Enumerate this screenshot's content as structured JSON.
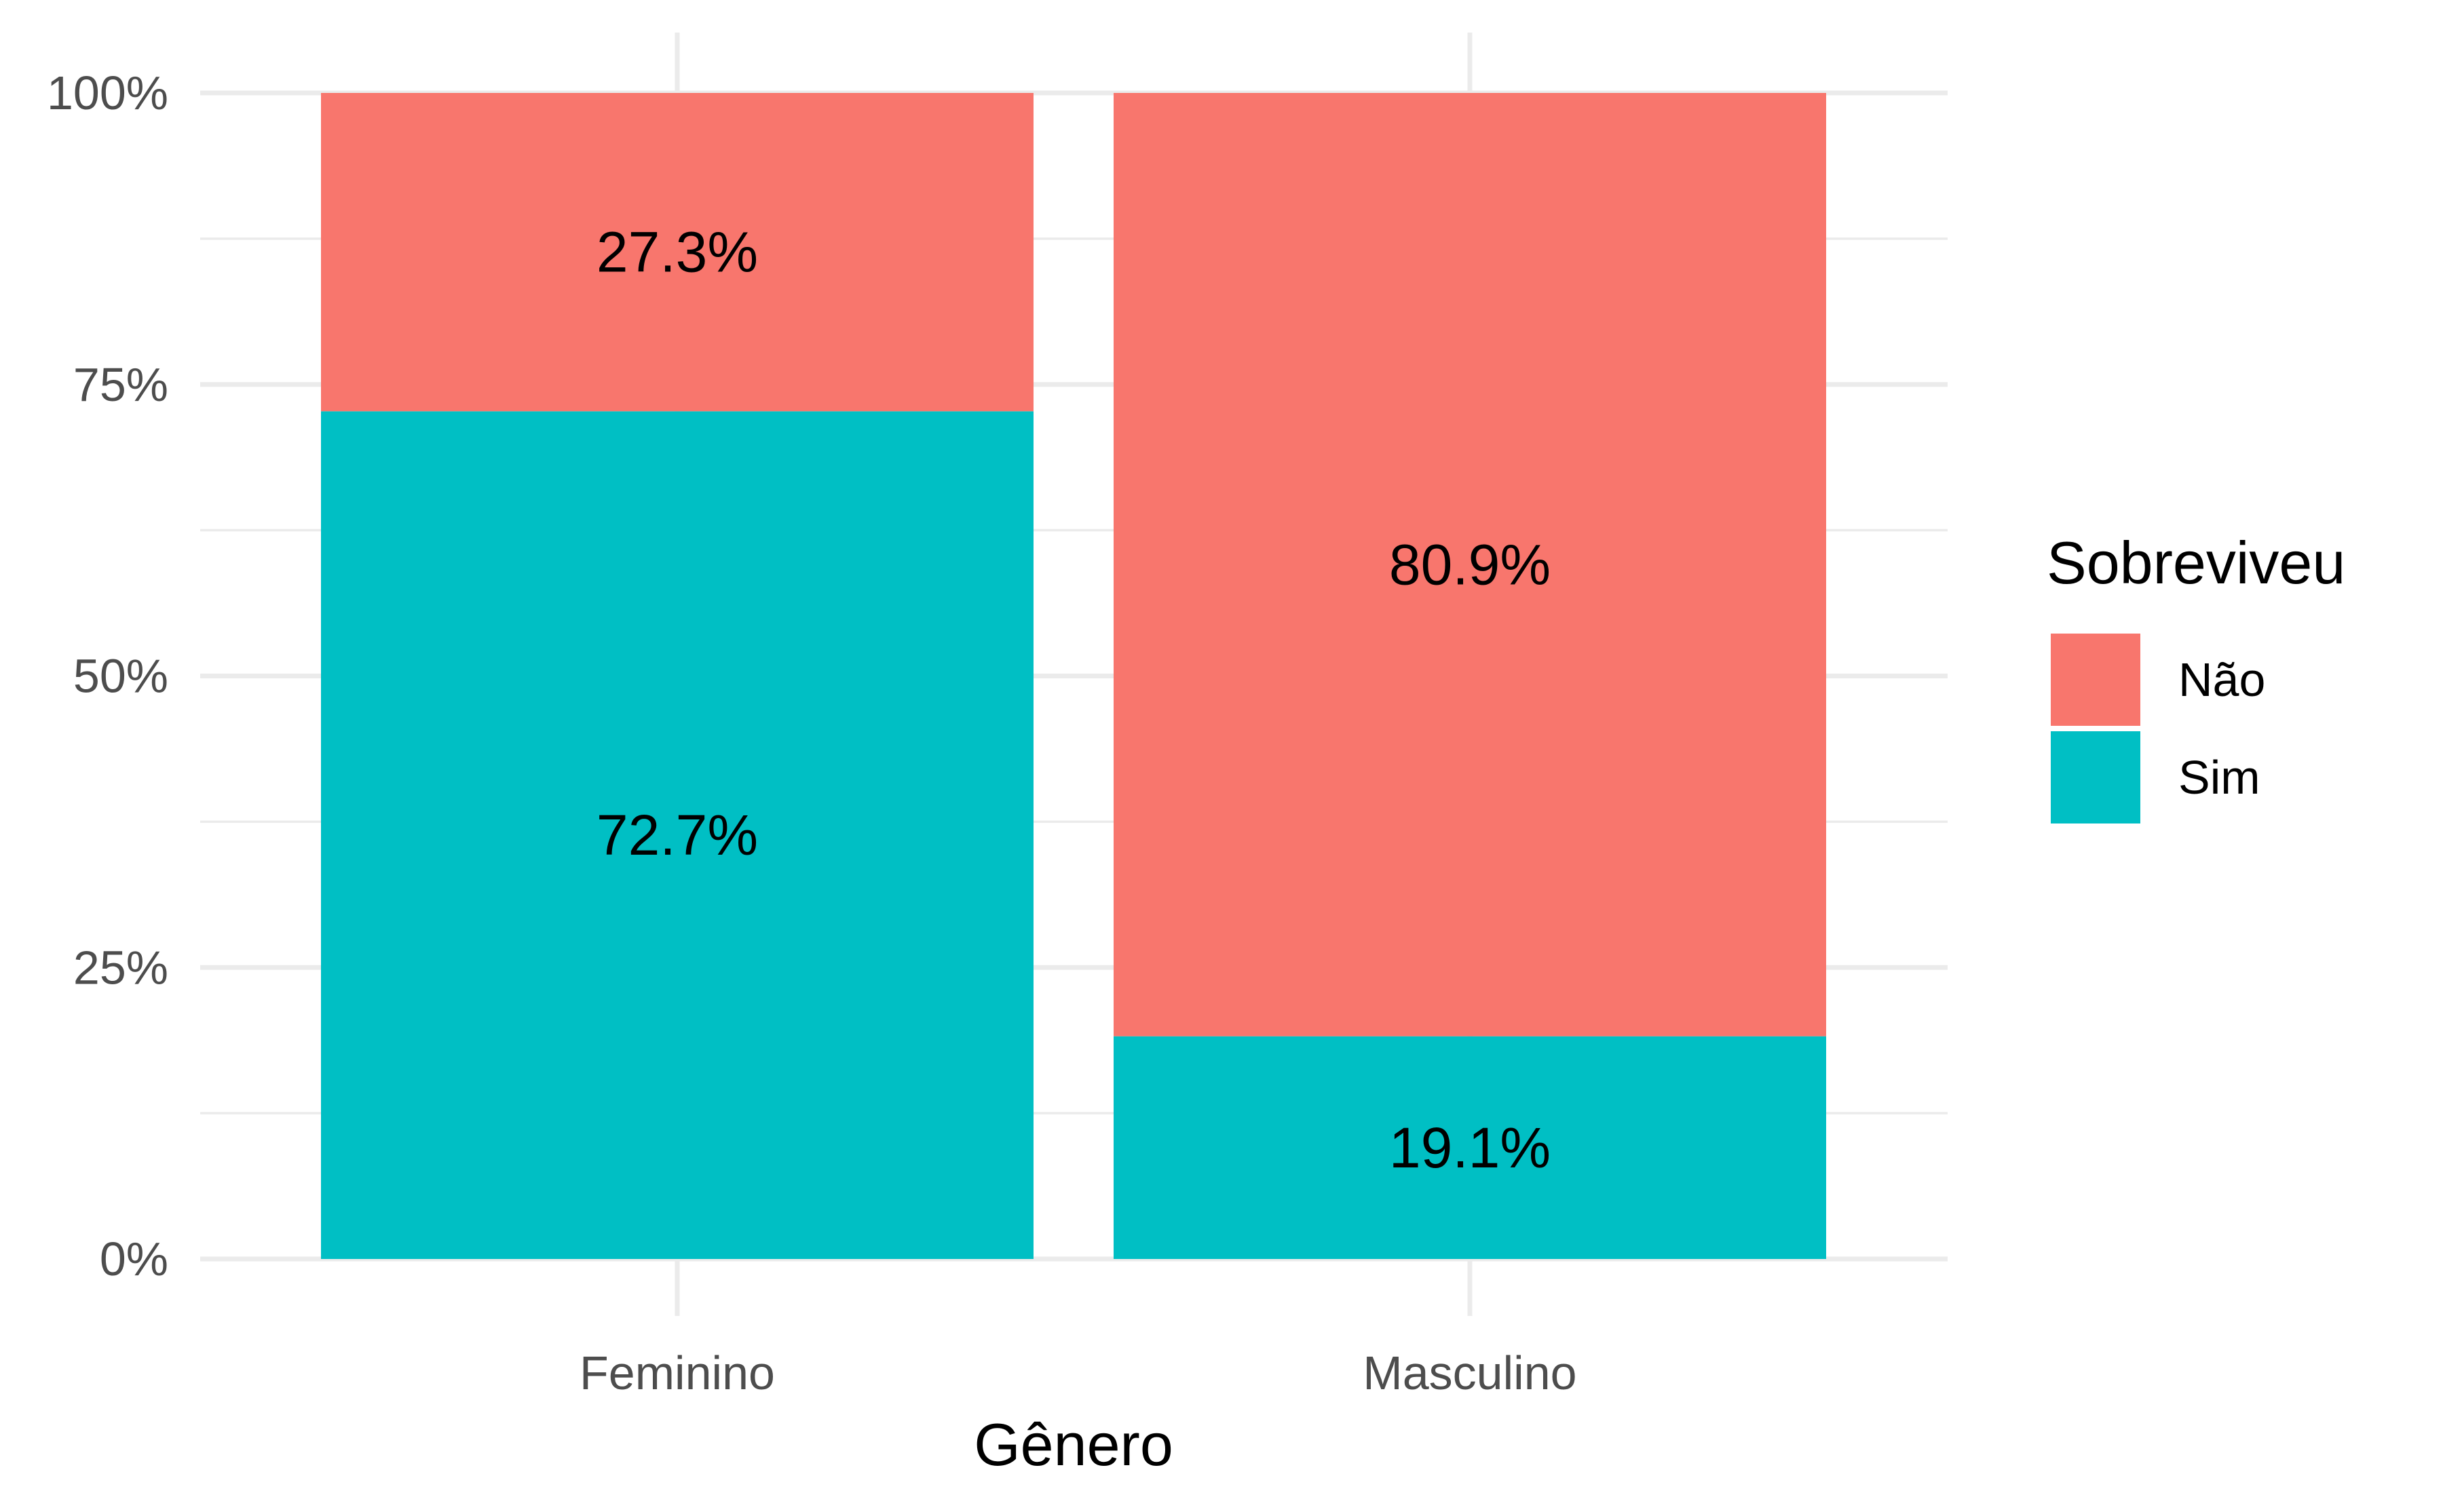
{
  "chart_data": {
    "type": "bar",
    "stacked": true,
    "normalized": true,
    "categories": [
      "Feminino",
      "Masculino"
    ],
    "series": [
      {
        "name": "Não",
        "color": "#F8766D",
        "values": [
          27.3,
          80.9
        ],
        "labels": [
          "27.3%",
          "80.9%"
        ]
      },
      {
        "name": "Sim",
        "color": "#00BFC4",
        "values": [
          72.7,
          19.1
        ],
        "labels": [
          "72.7%",
          "19.1%"
        ]
      }
    ],
    "xlabel": "Gênero",
    "ylabel": "",
    "ylim": [
      0,
      100
    ],
    "yticks": [
      0,
      25,
      50,
      75,
      100
    ],
    "ytick_labels": [
      "0%",
      "25%",
      "50%",
      "75%",
      "100%"
    ],
    "grid": true,
    "legend": {
      "title": "Sobreviveu",
      "position": "right"
    }
  }
}
